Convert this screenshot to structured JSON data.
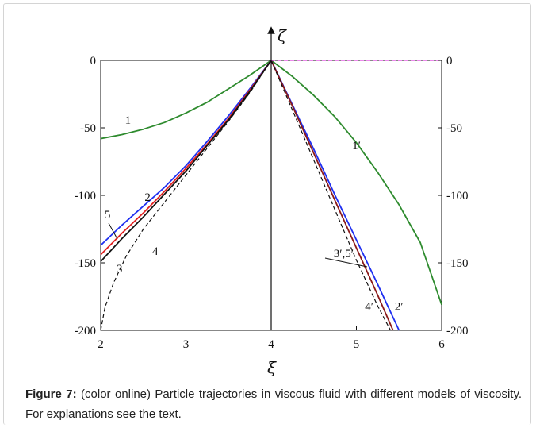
{
  "caption": {
    "label": "Figure 7:",
    "text": "(color online) Particle trajectories in viscous fluid with different models of viscosity. For explanations  see the text."
  },
  "chart_data": {
    "type": "line",
    "title": "",
    "xlabel": "ξ",
    "ylabel": "ζ",
    "xlim": [
      2,
      6
    ],
    "ylim": [
      -200,
      0
    ],
    "grid": false,
    "x_ticks": [
      "2",
      "3",
      "4",
      "5",
      "6"
    ],
    "y_ticks_left": [
      "0",
      "-50",
      "-100",
      "-150",
      "-200"
    ],
    "y_ticks_right": [
      "0",
      "-50",
      "-100",
      "-150",
      "-200"
    ],
    "series": [
      {
        "name": "1",
        "color": "#2e8b2e",
        "dash": "solid",
        "x": [
          2.0,
          2.25,
          2.5,
          2.75,
          3.0,
          3.25,
          3.5,
          3.75,
          4.0
        ],
        "y": [
          -58,
          -55,
          -51,
          -46,
          -39,
          -31,
          -21,
          -11,
          0
        ]
      },
      {
        "name": "2",
        "color": "#1f2ff0",
        "dash": "solid",
        "x": [
          2.0,
          2.25,
          2.5,
          2.75,
          3.0,
          3.25,
          3.5,
          3.75,
          4.0
        ],
        "y": [
          -137,
          -122,
          -108,
          -94,
          -78,
          -60,
          -41,
          -21,
          0
        ]
      },
      {
        "name": "5",
        "color": "#e02020",
        "dash": "solid",
        "x": [
          2.0,
          2.25,
          2.5,
          2.75,
          3.0,
          3.25,
          3.5,
          3.75,
          4.0
        ],
        "y": [
          -144,
          -128,
          -113,
          -97,
          -80,
          -62,
          -43,
          -22,
          0
        ]
      },
      {
        "name": "3",
        "color": "#111111",
        "dash": "solid",
        "x": [
          2.0,
          2.25,
          2.5,
          2.75,
          3.0,
          3.25,
          3.5,
          3.75,
          4.0
        ],
        "y": [
          -149,
          -132,
          -116,
          -99,
          -82,
          -63,
          -44,
          -23,
          0
        ]
      },
      {
        "name": "4",
        "color": "#111111",
        "dash": "dashed",
        "x": [
          2.0,
          2.05,
          2.15,
          2.3,
          2.5,
          2.75,
          3.0,
          3.25,
          3.5,
          3.75,
          4.0
        ],
        "y": [
          -200,
          -183,
          -165,
          -145,
          -125,
          -105,
          -85,
          -65,
          -45,
          -24,
          0
        ]
      },
      {
        "name": "1′",
        "color": "#2e8b2e",
        "dash": "solid",
        "x": [
          4.0,
          4.25,
          4.5,
          4.75,
          5.0,
          5.25,
          5.5,
          5.75,
          6.0
        ],
        "y": [
          0,
          -12,
          -26,
          -42,
          -61,
          -83,
          -107,
          -135,
          -181
        ]
      },
      {
        "name": "2′",
        "color": "#1f2ff0",
        "dash": "solid",
        "x": [
          4.0,
          4.25,
          4.5,
          4.75,
          5.0,
          5.25,
          5.5
        ],
        "y": [
          0,
          -33,
          -66,
          -100,
          -133,
          -166,
          -200
        ]
      },
      {
        "name": "3′,5′",
        "color": "#8b1a1a",
        "dash": "solid",
        "x": [
          4.0,
          4.25,
          4.5,
          4.75,
          5.0,
          5.25,
          5.43
        ],
        "y": [
          0,
          -34,
          -69,
          -104,
          -139,
          -174,
          -200
        ]
      },
      {
        "name": "4′",
        "color": "#111111",
        "dash": "dashed",
        "x": [
          4.0,
          4.25,
          4.5,
          4.75,
          5.0,
          5.25,
          5.4
        ],
        "y": [
          0,
          -37,
          -74,
          -111,
          -148,
          -182,
          -200
        ]
      },
      {
        "name": "",
        "color": "#e040e0",
        "dash": "dashed",
        "x": [
          4.0,
          6.0
        ],
        "y": [
          0,
          0
        ]
      }
    ],
    "labels": [
      {
        "text": "1",
        "x": 2.32,
        "y": -47
      },
      {
        "text": "1′",
        "x": 5.0,
        "y": -66
      },
      {
        "text": "2",
        "x": 2.55,
        "y": -104
      },
      {
        "text": "5",
        "x": 2.08,
        "y": -117
      },
      {
        "text": "3",
        "x": 2.22,
        "y": -157
      },
      {
        "text": "4",
        "x": 2.64,
        "y": -144
      },
      {
        "text": "3′,5′",
        "x": 4.85,
        "y": -146
      },
      {
        "text": "4′",
        "x": 5.15,
        "y": -185
      },
      {
        "text": "2′",
        "x": 5.5,
        "y": -185
      }
    ]
  }
}
